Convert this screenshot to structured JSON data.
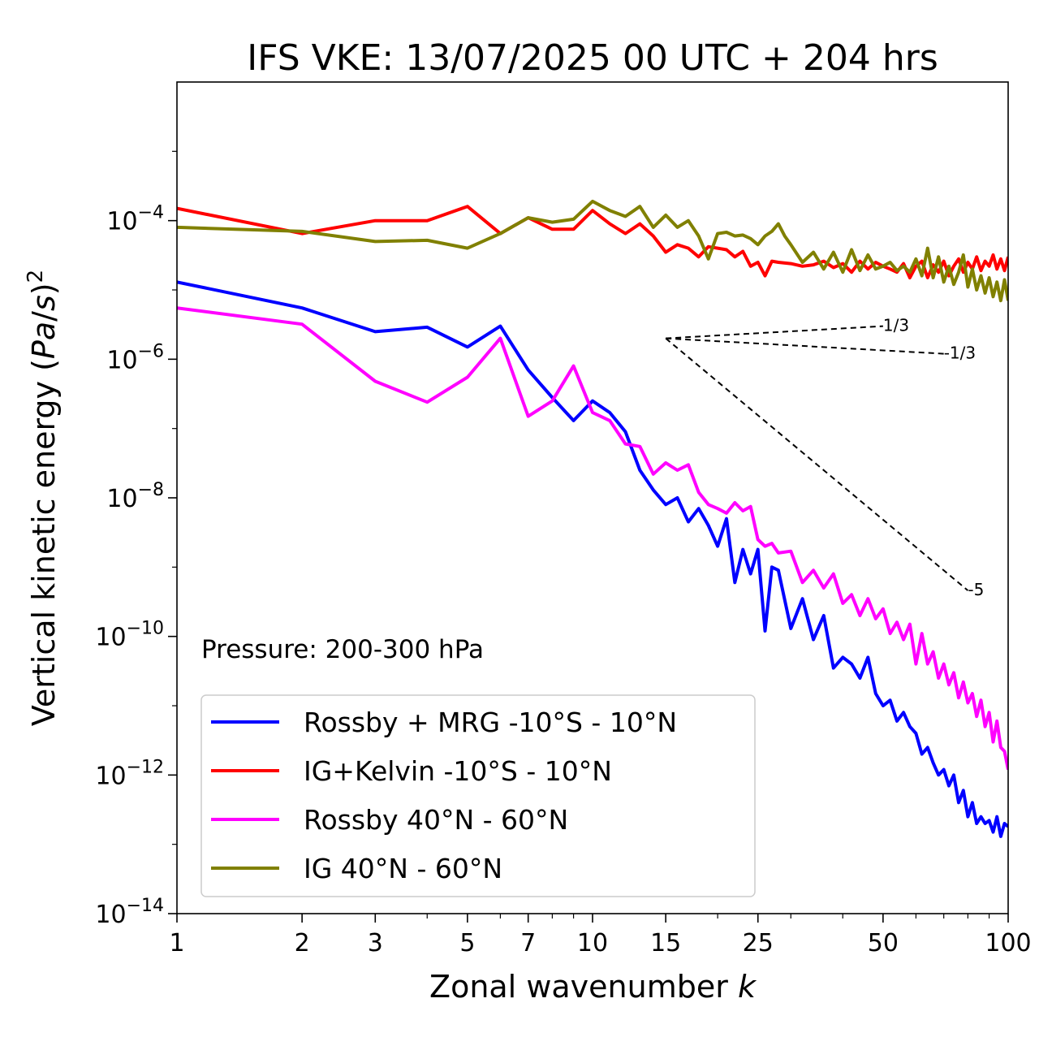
{
  "chart_data": {
    "type": "line",
    "title": "IFS VKE: 13/07/2025 00 UTC + 204 hrs",
    "xlabel": "Zonal wavenumber k",
    "ylabel": "Vertical kinetic energy (Pa/s)^2",
    "xscale": "log",
    "yscale": "log",
    "xlim": [
      1,
      100
    ],
    "ylim": [
      1e-14,
      0.01
    ],
    "x_ticks": [
      1,
      2,
      3,
      5,
      7,
      10,
      15,
      25,
      50,
      100
    ],
    "y_ticks": [
      1e-14,
      1e-12,
      1e-10,
      1e-08,
      1e-06,
      0.0001
    ],
    "annotation": "Pressure: 200-300 hPa",
    "legend_position": "lower-left",
    "grid": false,
    "series": [
      {
        "name": "Rossby + MRG -10°S - 10°N",
        "color": "#0000ff",
        "points": [
          [
            1,
            1.3e-05
          ],
          [
            2,
            5.5e-06
          ],
          [
            3,
            2.5e-06
          ],
          [
            4,
            2.9e-06
          ],
          [
            5,
            1.5e-06
          ],
          [
            6,
            3e-06
          ],
          [
            7,
            7e-07
          ],
          [
            8,
            2.8e-07
          ],
          [
            9,
            1.3e-07
          ],
          [
            10,
            2.5e-07
          ],
          [
            11,
            1.7e-07
          ],
          [
            12,
            9e-08
          ],
          [
            13,
            2.5e-08
          ],
          [
            14,
            1.3e-08
          ],
          [
            15,
            8e-09
          ],
          [
            16,
            1e-08
          ],
          [
            17,
            4.5e-09
          ],
          [
            18,
            7e-09
          ],
          [
            19,
            4e-09
          ],
          [
            20,
            2e-09
          ],
          [
            21,
            5e-09
          ],
          [
            22,
            6e-10
          ],
          [
            23,
            1.8e-09
          ],
          [
            24,
            8e-10
          ],
          [
            25,
            1.8e-09
          ],
          [
            26,
            1.2e-10
          ],
          [
            27,
            1e-09
          ],
          [
            28,
            9e-10
          ],
          [
            30,
            1.3e-10
          ],
          [
            32,
            3.5e-10
          ],
          [
            34,
            9e-11
          ],
          [
            36,
            2e-10
          ],
          [
            38,
            3.5e-11
          ],
          [
            40,
            5e-11
          ],
          [
            42,
            4e-11
          ],
          [
            44,
            2.5e-11
          ],
          [
            46,
            5e-11
          ],
          [
            48,
            1.5e-11
          ],
          [
            50,
            1e-11
          ],
          [
            52,
            1.2e-11
          ],
          [
            54,
            6e-12
          ],
          [
            56,
            8e-12
          ],
          [
            58,
            5e-12
          ],
          [
            60,
            4e-12
          ],
          [
            62,
            2e-12
          ],
          [
            64,
            2.5e-12
          ],
          [
            66,
            1.5e-12
          ],
          [
            68,
            1e-12
          ],
          [
            70,
            1.2e-12
          ],
          [
            72,
            7e-13
          ],
          [
            74,
            1e-12
          ],
          [
            76,
            4e-13
          ],
          [
            78,
            6e-13
          ],
          [
            80,
            2.5e-13
          ],
          [
            82,
            4e-13
          ],
          [
            84,
            2e-13
          ],
          [
            86,
            2.5e-13
          ],
          [
            88,
            2e-13
          ],
          [
            90,
            2.2e-13
          ],
          [
            92,
            1.5e-13
          ],
          [
            94,
            2.5e-13
          ],
          [
            96,
            1.3e-13
          ],
          [
            98,
            2e-13
          ],
          [
            100,
            1.8e-13
          ]
        ]
      },
      {
        "name": "IG+Kelvin -10°S - 10°N",
        "color": "#ff0000",
        "points": [
          [
            1,
            0.00015
          ],
          [
            2,
            6.5e-05
          ],
          [
            3,
            0.0001
          ],
          [
            4,
            0.0001
          ],
          [
            5,
            0.00016
          ],
          [
            6,
            6.5e-05
          ],
          [
            7,
            0.00011
          ],
          [
            8,
            7.5e-05
          ],
          [
            9,
            7.5e-05
          ],
          [
            10,
            0.00014
          ],
          [
            11,
            9e-05
          ],
          [
            12,
            6.5e-05
          ],
          [
            13,
            9e-05
          ],
          [
            14,
            6e-05
          ],
          [
            15,
            3.5e-05
          ],
          [
            16,
            4.5e-05
          ],
          [
            17,
            4e-05
          ],
          [
            18,
            3e-05
          ],
          [
            19,
            4.2e-05
          ],
          [
            20,
            4e-05
          ],
          [
            21,
            3.8e-05
          ],
          [
            22,
            3e-05
          ],
          [
            23,
            3.6e-05
          ],
          [
            24,
            2.2e-05
          ],
          [
            25,
            2.5e-05
          ],
          [
            26,
            1.6e-05
          ],
          [
            27,
            2.6e-05
          ],
          [
            28,
            2.5e-05
          ],
          [
            30,
            2.4e-05
          ],
          [
            32,
            2.2e-05
          ],
          [
            34,
            2.3e-05
          ],
          [
            36,
            2.6e-05
          ],
          [
            38,
            2.1e-05
          ],
          [
            40,
            2.4e-05
          ],
          [
            42,
            1.8e-05
          ],
          [
            44,
            2.6e-05
          ],
          [
            46,
            2e-05
          ],
          [
            48,
            2.5e-05
          ],
          [
            50,
            2.2e-05
          ],
          [
            52,
            2e-05
          ],
          [
            54,
            1.8e-05
          ],
          [
            56,
            2.4e-05
          ],
          [
            58,
            1.5e-05
          ],
          [
            60,
            2.2e-05
          ],
          [
            62,
            2.6e-05
          ],
          [
            64,
            1.5e-05
          ],
          [
            66,
            2.3e-05
          ],
          [
            68,
            1.8e-05
          ],
          [
            70,
            2.6e-05
          ],
          [
            72,
            1.6e-05
          ],
          [
            74,
            2.2e-05
          ],
          [
            76,
            2.8e-05
          ],
          [
            78,
            1.8e-05
          ],
          [
            80,
            2.5e-05
          ],
          [
            82,
            2e-05
          ],
          [
            84,
            3e-05
          ],
          [
            86,
            1.9e-05
          ],
          [
            88,
            2.6e-05
          ],
          [
            90,
            2.2e-05
          ],
          [
            92,
            3.2e-05
          ],
          [
            94,
            2e-05
          ],
          [
            96,
            2.8e-05
          ],
          [
            98,
            1.9e-05
          ],
          [
            100,
            3e-05
          ]
        ]
      },
      {
        "name": "Rossby 40°N - 60°N",
        "color": "#ff00ff",
        "points": [
          [
            1,
            5.5e-06
          ],
          [
            2,
            3.2e-06
          ],
          [
            3,
            4.8e-07
          ],
          [
            4,
            2.4e-07
          ],
          [
            5,
            5.5e-07
          ],
          [
            6,
            2e-06
          ],
          [
            7,
            1.5e-07
          ],
          [
            8,
            2.5e-07
          ],
          [
            9,
            8e-07
          ],
          [
            10,
            1.7e-07
          ],
          [
            11,
            1.3e-07
          ],
          [
            12,
            6e-08
          ],
          [
            13,
            5.5e-08
          ],
          [
            14,
            2.2e-08
          ],
          [
            15,
            3.2e-08
          ],
          [
            16,
            2.5e-08
          ],
          [
            17,
            3e-08
          ],
          [
            18,
            1.2e-08
          ],
          [
            19,
            8e-09
          ],
          [
            20,
            7e-09
          ],
          [
            21,
            6e-09
          ],
          [
            22,
            8.5e-09
          ],
          [
            23,
            6.5e-09
          ],
          [
            24,
            7.5e-09
          ],
          [
            25,
            2.5e-09
          ],
          [
            26,
            2e-09
          ],
          [
            27,
            2.2e-09
          ],
          [
            28,
            1.6e-09
          ],
          [
            30,
            1.7e-09
          ],
          [
            32,
            6e-10
          ],
          [
            34,
            9e-10
          ],
          [
            36,
            5e-10
          ],
          [
            38,
            8e-10
          ],
          [
            40,
            3e-10
          ],
          [
            42,
            4e-10
          ],
          [
            44,
            2e-10
          ],
          [
            46,
            3.5e-10
          ],
          [
            48,
            1.8e-10
          ],
          [
            50,
            2.5e-10
          ],
          [
            52,
            1.1e-10
          ],
          [
            54,
            1.6e-10
          ],
          [
            56,
            9e-11
          ],
          [
            58,
            1.5e-10
          ],
          [
            60,
            4e-11
          ],
          [
            62,
            1.1e-10
          ],
          [
            64,
            4e-11
          ],
          [
            66,
            6e-11
          ],
          [
            68,
            2.5e-11
          ],
          [
            70,
            4e-11
          ],
          [
            72,
            2e-11
          ],
          [
            74,
            3e-11
          ],
          [
            76,
            1.3e-11
          ],
          [
            78,
            2.2e-11
          ],
          [
            80,
            1.1e-11
          ],
          [
            82,
            1.5e-11
          ],
          [
            84,
            7e-12
          ],
          [
            86,
            1.2e-11
          ],
          [
            88,
            5e-12
          ],
          [
            90,
            8e-12
          ],
          [
            92,
            3e-12
          ],
          [
            94,
            6e-12
          ],
          [
            96,
            2.5e-12
          ],
          [
            98,
            2.2e-12
          ],
          [
            100,
            1.2e-12
          ]
        ]
      },
      {
        "name": "IG 40°N - 60°N",
        "color": "#808000",
        "points": [
          [
            1,
            8e-05
          ],
          [
            2,
            7e-05
          ],
          [
            3,
            5e-05
          ],
          [
            4,
            5.2e-05
          ],
          [
            5,
            4e-05
          ],
          [
            6,
            6.5e-05
          ],
          [
            7,
            0.00011
          ],
          [
            8,
            9.5e-05
          ],
          [
            9,
            0.000105
          ],
          [
            10,
            0.00019
          ],
          [
            11,
            0.00014
          ],
          [
            12,
            0.000115
          ],
          [
            13,
            0.00016
          ],
          [
            14,
            8e-05
          ],
          [
            15,
            0.00012
          ],
          [
            16,
            8e-05
          ],
          [
            17,
            0.0001
          ],
          [
            18,
            6e-05
          ],
          [
            19,
            2.8e-05
          ],
          [
            20,
            6.5e-05
          ],
          [
            21,
            6.8e-05
          ],
          [
            22,
            6e-05
          ],
          [
            23,
            6.2e-05
          ],
          [
            24,
            5.5e-05
          ],
          [
            25,
            4.5e-05
          ],
          [
            26,
            6e-05
          ],
          [
            27,
            7e-05
          ],
          [
            28,
            9e-05
          ],
          [
            29,
            6e-05
          ],
          [
            30,
            4.5e-05
          ],
          [
            32,
            2.5e-05
          ],
          [
            34,
            3.5e-05
          ],
          [
            36,
            2e-05
          ],
          [
            38,
            3.5e-05
          ],
          [
            40,
            1.8e-05
          ],
          [
            42,
            3.8e-05
          ],
          [
            44,
            1.9e-05
          ],
          [
            46,
            3.2e-05
          ],
          [
            48,
            2e-05
          ],
          [
            50,
            2.2e-05
          ],
          [
            52,
            2.5e-05
          ],
          [
            54,
            1.9e-05
          ],
          [
            56,
            2.2e-05
          ],
          [
            58,
            1.8e-05
          ],
          [
            60,
            2.8e-05
          ],
          [
            62,
            1.6e-05
          ],
          [
            64,
            4e-05
          ],
          [
            66,
            1.5e-05
          ],
          [
            68,
            3e-05
          ],
          [
            70,
            1.3e-05
          ],
          [
            72,
            2.2e-05
          ],
          [
            74,
            1.2e-05
          ],
          [
            76,
            1.8e-05
          ],
          [
            78,
            3.2e-05
          ],
          [
            80,
            1.1e-05
          ],
          [
            82,
            2e-05
          ],
          [
            84,
            1e-05
          ],
          [
            86,
            1.6e-05
          ],
          [
            88,
            9e-06
          ],
          [
            90,
            1.5e-05
          ],
          [
            92,
            8e-06
          ],
          [
            94,
            1.3e-05
          ],
          [
            96,
            7e-06
          ],
          [
            98,
            1.4e-05
          ],
          [
            100,
            7e-06
          ]
        ]
      }
    ],
    "reference_slopes": [
      {
        "label": "1/3",
        "x": [
          15,
          50
        ],
        "y": [
          2e-06,
          3e-06
        ]
      },
      {
        "label": "-1/3",
        "x": [
          15,
          70
        ],
        "y": [
          2e-06,
          1.2e-06
        ]
      },
      {
        "label": "-5",
        "x": [
          15,
          80
        ],
        "y": [
          2e-06,
          4.6e-10
        ]
      }
    ]
  }
}
